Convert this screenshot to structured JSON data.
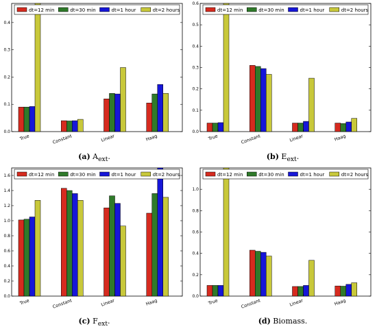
{
  "legend": [
    "dt=12 min",
    "dt=30 min",
    "dt=1 hour",
    "dt=2 hours"
  ],
  "colors": {
    "dt12": "#d62b1f",
    "dt30": "#2f7a2a",
    "dt1h": "#1616d8",
    "dt2h": "#c8c83a"
  },
  "captions": [
    {
      "label": "(a)",
      "text": "A",
      "sub": "ext",
      "suffix": "."
    },
    {
      "label": "(b)",
      "text": "E",
      "sub": "ext",
      "suffix": "."
    },
    {
      "label": "(c)",
      "text": "F",
      "sub": "ext",
      "suffix": "."
    },
    {
      "label": "(d)",
      "text": "Biomass.",
      "sub": "",
      "suffix": ""
    }
  ],
  "chart_data": [
    {
      "type": "bar",
      "categories": [
        "True",
        "Constant",
        "Linear",
        "Haag"
      ],
      "series": [
        {
          "name": "dt=12 min",
          "values": [
            0.09,
            0.04,
            0.12,
            0.105
          ]
        },
        {
          "name": "dt=30 min",
          "values": [
            0.09,
            0.039,
            0.14,
            0.138
          ]
        },
        {
          "name": "dt=1 hour",
          "values": [
            0.092,
            0.04,
            0.138,
            0.173
          ]
        },
        {
          "name": "dt=2 hours",
          "values": [
            0.47,
            0.045,
            0.235,
            0.14
          ]
        }
      ],
      "ylim": [
        0,
        0.47
      ],
      "yticks": [
        "0.0",
        "0.1",
        "0.2",
        "0.3",
        "0.4"
      ],
      "ytick_values": [
        0,
        0.1,
        0.2,
        0.3,
        0.4
      ],
      "legend_position": "top"
    },
    {
      "type": "bar",
      "categories": [
        "True",
        "Constant",
        "Linear",
        "Haag"
      ],
      "series": [
        {
          "name": "dt=12 min",
          "values": [
            0.04,
            0.31,
            0.04,
            0.04
          ]
        },
        {
          "name": "dt=30 min",
          "values": [
            0.04,
            0.305,
            0.04,
            0.038
          ]
        },
        {
          "name": "dt=1 hour",
          "values": [
            0.042,
            0.295,
            0.048,
            0.045
          ]
        },
        {
          "name": "dt=2 hours",
          "values": [
            0.6,
            0.268,
            0.25,
            0.062
          ]
        }
      ],
      "ylim": [
        0,
        0.6
      ],
      "yticks": [
        "0.0",
        "0.1",
        "0.2",
        "0.3",
        "0.4",
        "0.5",
        "0.6"
      ],
      "ytick_values": [
        0,
        0.1,
        0.2,
        0.3,
        0.4,
        0.5,
        0.6
      ],
      "legend_position": "top"
    },
    {
      "type": "bar",
      "categories": [
        "True",
        "Constant",
        "Linear",
        "Haag"
      ],
      "series": [
        {
          "name": "dt=12 min",
          "values": [
            1.01,
            1.43,
            1.17,
            1.1
          ]
        },
        {
          "name": "dt=30 min",
          "values": [
            1.02,
            1.4,
            1.33,
            1.36
          ]
        },
        {
          "name": "dt=1 hour",
          "values": [
            1.05,
            1.36,
            1.23,
            1.7
          ]
        },
        {
          "name": "dt=2 hours",
          "values": [
            1.27,
            1.27,
            0.93,
            1.31
          ]
        }
      ],
      "ylim": [
        0,
        1.7
      ],
      "yticks": [
        "0.0",
        "0.2",
        "0.4",
        "0.6",
        "0.8",
        "1.0",
        "1.2",
        "1.4",
        "1.6"
      ],
      "ytick_values": [
        0,
        0.2,
        0.4,
        0.6,
        0.8,
        1.0,
        1.2,
        1.4,
        1.6
      ],
      "legend_position": "top"
    },
    {
      "type": "bar",
      "categories": [
        "True",
        "Constant",
        "Linear",
        "Haag"
      ],
      "series": [
        {
          "name": "dt=12 min",
          "values": [
            0.1,
            0.43,
            0.09,
            0.095
          ]
        },
        {
          "name": "dt=30 min",
          "values": [
            0.1,
            0.42,
            0.09,
            0.093
          ]
        },
        {
          "name": "dt=1 hour",
          "values": [
            0.1,
            0.41,
            0.1,
            0.11
          ]
        },
        {
          "name": "dt=2 hours",
          "values": [
            1.2,
            0.375,
            0.335,
            0.125
          ]
        }
      ],
      "ylim": [
        0,
        1.2
      ],
      "yticks": [
        "0.0",
        "0.2",
        "0.4",
        "0.6",
        "0.8",
        "1.0"
      ],
      "ytick_values": [
        0,
        0.2,
        0.4,
        0.6,
        0.8,
        1.0
      ],
      "legend_position": "top"
    }
  ]
}
